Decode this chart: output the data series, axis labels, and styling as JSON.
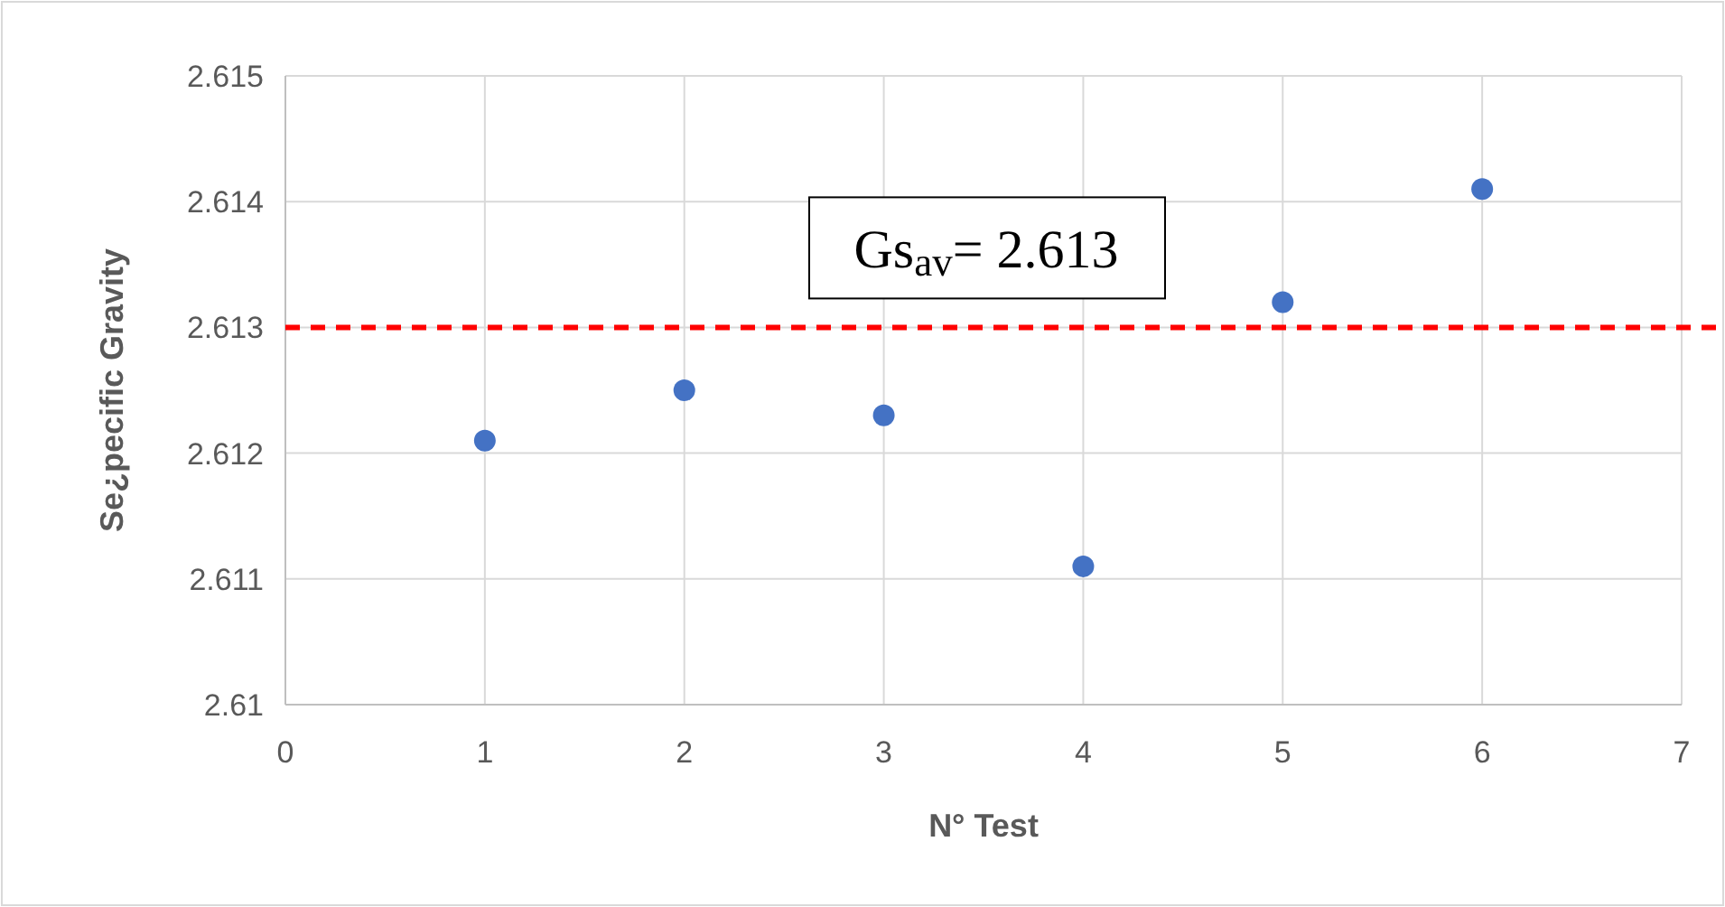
{
  "chart_data": {
    "type": "scatter",
    "xlabel": "N° Test",
    "ylabel": "Se¿pecific Gravity",
    "x": [
      1,
      2,
      3,
      4,
      5,
      6
    ],
    "series": [
      {
        "color": "#4472c4",
        "values": [
          2.6121,
          2.6125,
          2.6123,
          2.6111,
          2.6132,
          2.6141
        ]
      }
    ],
    "xlim": [
      0,
      7
    ],
    "xticks": [
      0,
      1,
      2,
      3,
      4,
      5,
      6,
      7
    ],
    "ylim": [
      2.61,
      2.615
    ],
    "yticks": [
      {
        "value": 2.61,
        "label": "2.61"
      },
      {
        "value": 2.611,
        "label": "2.611"
      },
      {
        "value": 2.612,
        "label": "2.612"
      },
      {
        "value": 2.613,
        "label": "2.613"
      },
      {
        "value": 2.614,
        "label": "2.614"
      },
      {
        "value": 2.615,
        "label": "2.615"
      }
    ],
    "grid": true,
    "marker": "circle",
    "ref_lines": [
      {
        "axis": "y",
        "value": 2.613,
        "label": "Gs$_{av}$= 2.613",
        "color": "#ff0000",
        "line_style": "dashed"
      }
    ]
  }
}
